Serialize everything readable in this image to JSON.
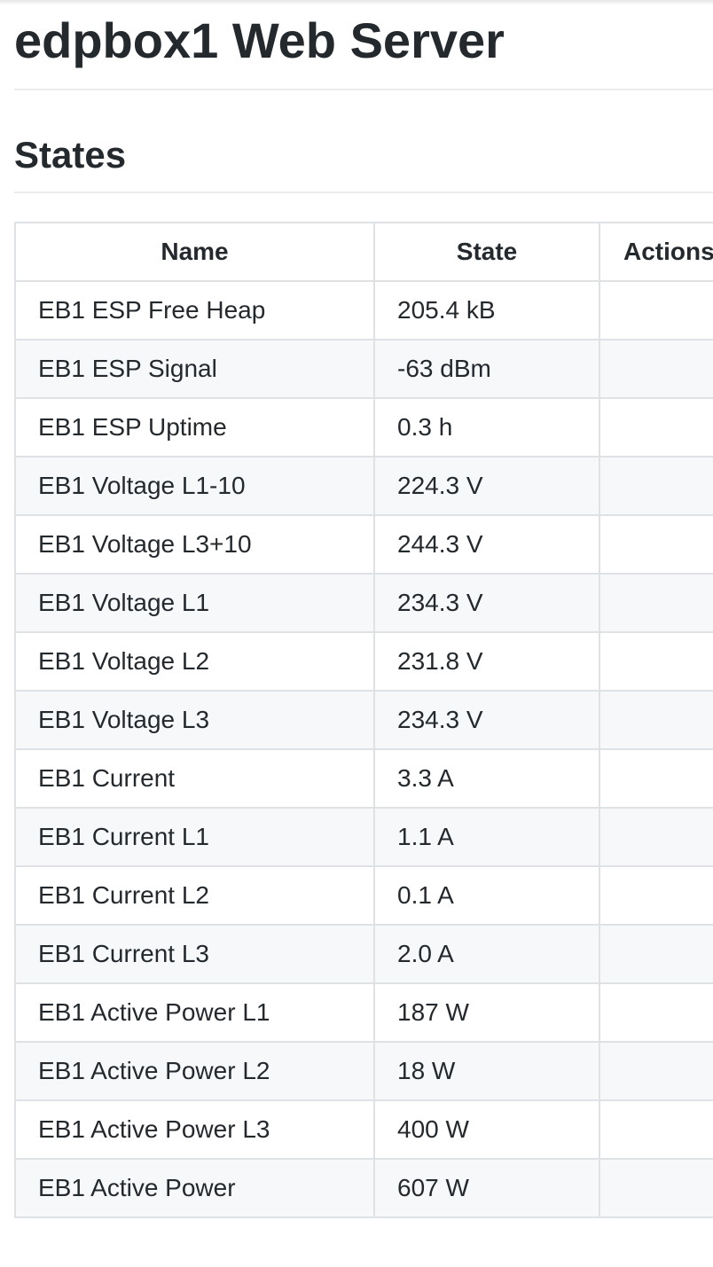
{
  "page": {
    "title": "edpbox1 Web Server",
    "section_title": "States"
  },
  "table": {
    "headers": [
      "Name",
      "State",
      "Actions"
    ],
    "rows": [
      {
        "name": "EB1 ESP Free Heap",
        "state": "205.4 kB",
        "actions": ""
      },
      {
        "name": "EB1 ESP Signal",
        "state": "-63 dBm",
        "actions": ""
      },
      {
        "name": "EB1 ESP Uptime",
        "state": "0.3 h",
        "actions": ""
      },
      {
        "name": "EB1 Voltage L1-10",
        "state": "224.3 V",
        "actions": ""
      },
      {
        "name": "EB1 Voltage L3+10",
        "state": "244.3 V",
        "actions": ""
      },
      {
        "name": "EB1 Voltage L1",
        "state": "234.3 V",
        "actions": ""
      },
      {
        "name": "EB1 Voltage L2",
        "state": "231.8 V",
        "actions": ""
      },
      {
        "name": "EB1 Voltage L3",
        "state": "234.3 V",
        "actions": ""
      },
      {
        "name": "EB1 Current",
        "state": "3.3 A",
        "actions": ""
      },
      {
        "name": "EB1 Current L1",
        "state": "1.1 A",
        "actions": ""
      },
      {
        "name": "EB1 Current L2",
        "state": "0.1 A",
        "actions": ""
      },
      {
        "name": "EB1 Current L3",
        "state": "2.0 A",
        "actions": ""
      },
      {
        "name": "EB1 Active Power L1",
        "state": "187 W",
        "actions": ""
      },
      {
        "name": "EB1 Active Power L2",
        "state": "18 W",
        "actions": ""
      },
      {
        "name": "EB1 Active Power L3",
        "state": "400 W",
        "actions": ""
      },
      {
        "name": "EB1 Active Power",
        "state": "607 W",
        "actions": ""
      }
    ]
  }
}
